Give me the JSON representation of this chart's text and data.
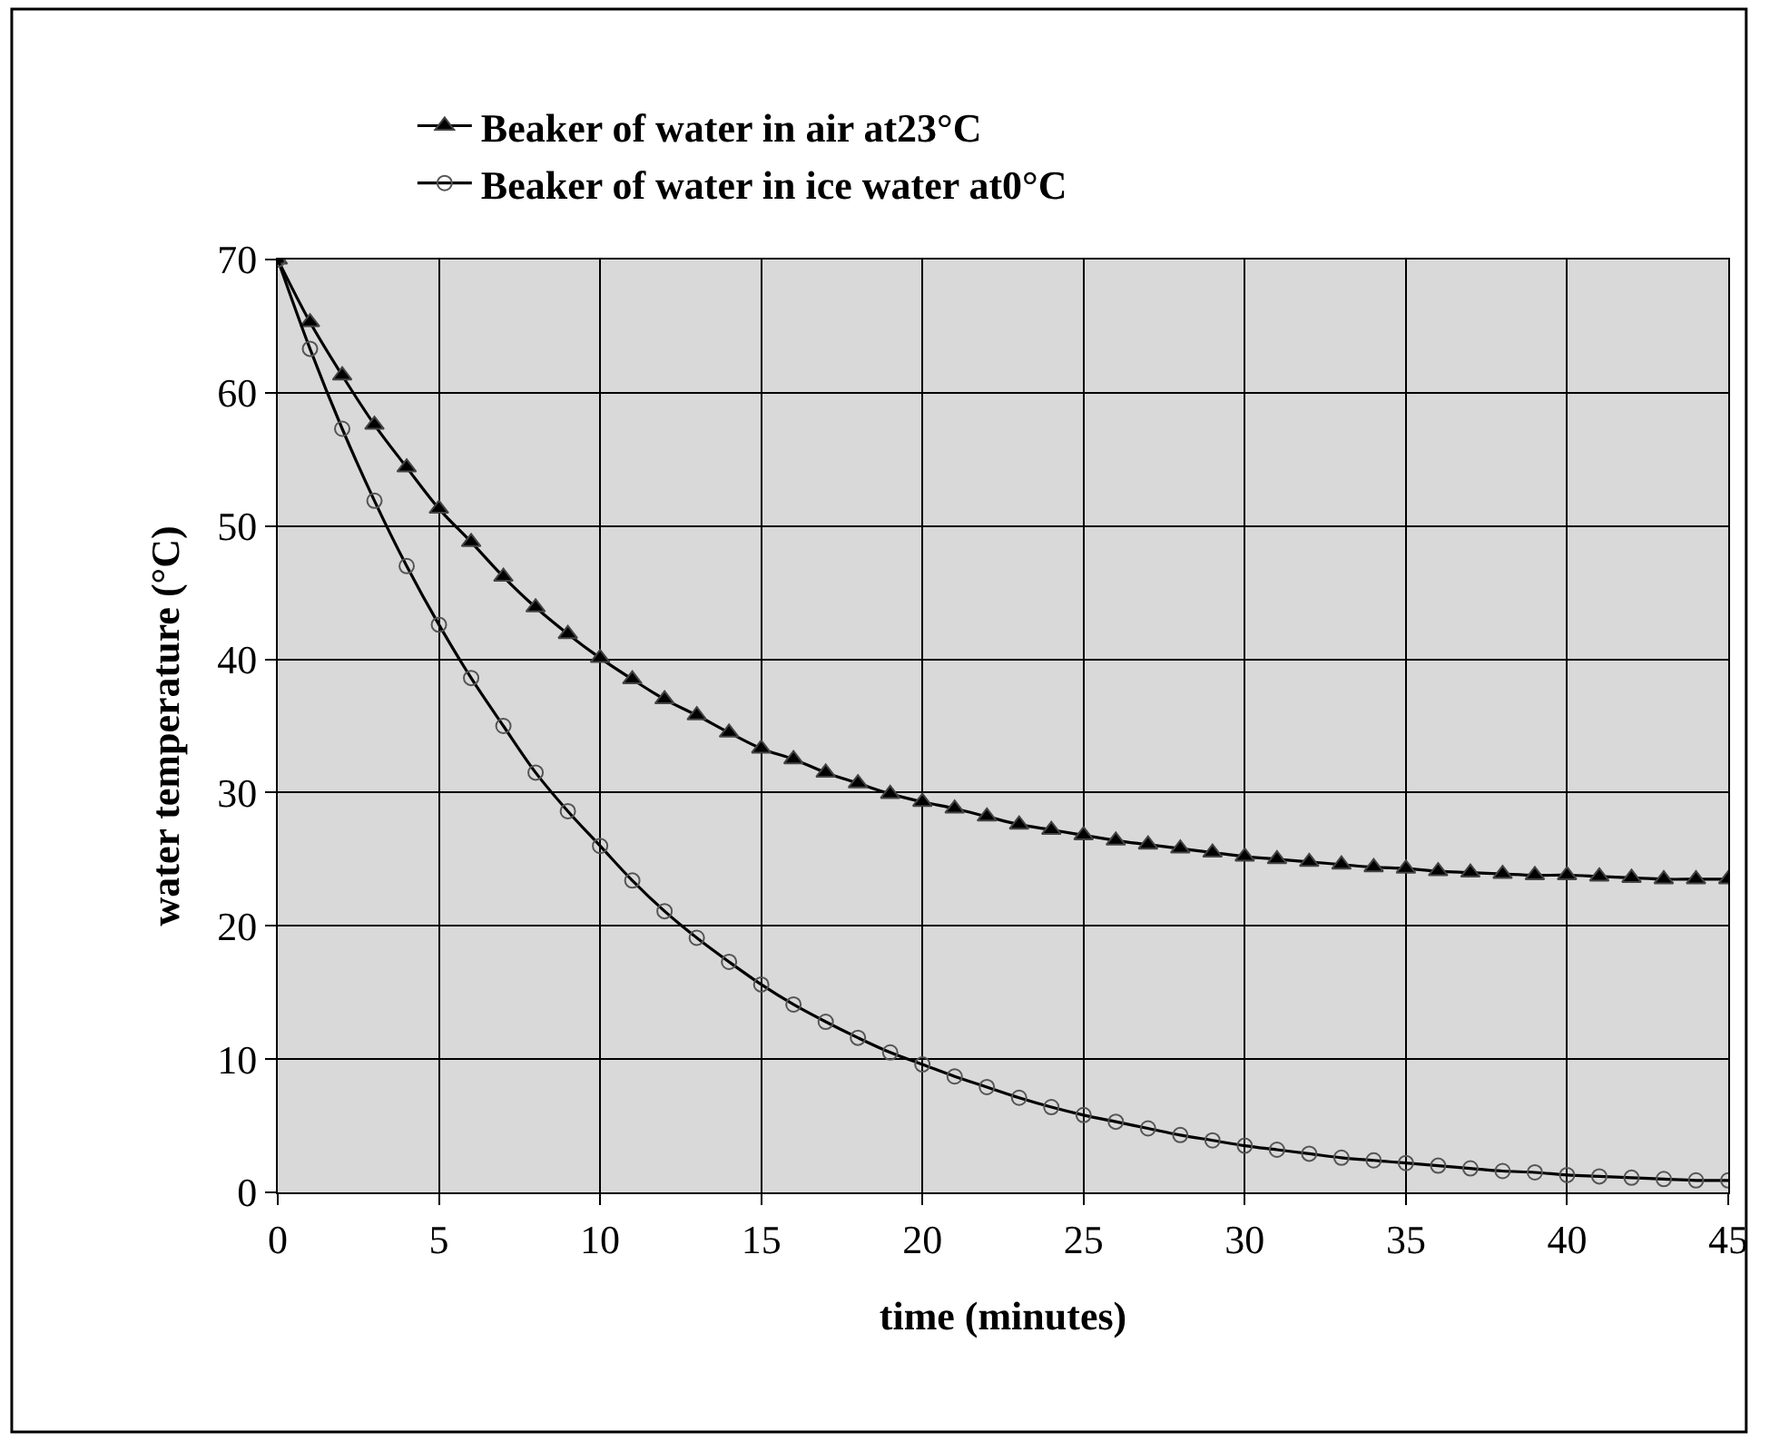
{
  "chart_data": {
    "type": "line",
    "xlabel": "time (minutes)",
    "ylabel": "water temperature (°C)",
    "x": [
      0,
      1,
      2,
      3,
      4,
      5,
      6,
      7,
      8,
      9,
      10,
      11,
      12,
      13,
      14,
      15,
      16,
      17,
      18,
      19,
      20,
      21,
      22,
      23,
      24,
      25,
      26,
      27,
      28,
      29,
      30,
      31,
      32,
      33,
      34,
      35,
      36,
      37,
      38,
      39,
      40,
      41,
      42,
      43,
      44,
      45
    ],
    "series": [
      {
        "name": "Beaker of water in air at23°C",
        "color": "#000000",
        "marker": "triangle",
        "values": [
          70,
          65.3,
          61.3,
          57.6,
          54.4,
          51.3,
          48.8,
          46.2,
          43.9,
          41.9,
          40.1,
          38.5,
          37.0,
          35.8,
          34.5,
          33.3,
          32.5,
          31.5,
          30.7,
          29.9,
          29.3,
          28.8,
          28.2,
          27.6,
          27.2,
          26.8,
          26.4,
          26.1,
          25.8,
          25.5,
          25.2,
          25.0,
          24.8,
          24.6,
          24.4,
          24.3,
          24.1,
          24.0,
          23.9,
          23.8,
          23.8,
          23.7,
          23.6,
          23.5,
          23.5,
          23.5
        ]
      },
      {
        "name": "Beaker of water in ice water at0°C",
        "color": "#000000",
        "marker": "circle",
        "values": [
          70,
          63.3,
          57.3,
          51.9,
          47.0,
          42.6,
          38.6,
          35.0,
          31.5,
          28.6,
          26.0,
          23.4,
          21.1,
          19.1,
          17.3,
          15.6,
          14.1,
          12.8,
          11.6,
          10.5,
          9.6,
          8.7,
          7.9,
          7.1,
          6.4,
          5.8,
          5.3,
          4.8,
          4.3,
          3.9,
          3.5,
          3.2,
          2.9,
          2.6,
          2.4,
          2.2,
          2.0,
          1.8,
          1.6,
          1.5,
          1.3,
          1.2,
          1.1,
          1.0,
          0.9,
          0.9
        ]
      }
    ],
    "xlim": [
      0,
      45
    ],
    "xticks": [
      0,
      5,
      10,
      15,
      20,
      25,
      30,
      35,
      40,
      45
    ],
    "ylim": [
      0,
      70
    ],
    "yticks": [
      0,
      10,
      20,
      30,
      40,
      50,
      60,
      70
    ],
    "grid": true,
    "legend": "top"
  }
}
